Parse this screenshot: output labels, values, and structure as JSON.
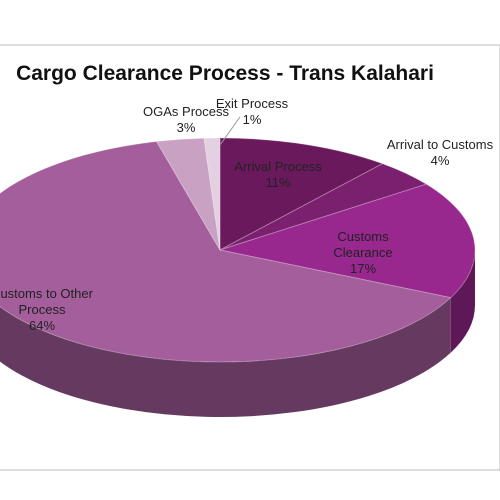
{
  "chart_data": {
    "type": "pie",
    "title": "Cargo Clearance Process - Trans Kalahari",
    "categories": [
      "Arrival Process",
      "Arrival to Customs",
      "Customs Clearance",
      "Customs to Other Process",
      "OGAs Process",
      "Exit Process"
    ],
    "values": [
      11,
      4,
      17,
      64,
      3,
      1
    ],
    "value_labels": [
      "11%",
      "4%",
      "17%",
      "64%",
      "3%",
      "1%"
    ],
    "colors": [
      "#6a1a5c",
      "#7b206e",
      "#98278e",
      "#a45e9b",
      "#c9a1c3",
      "#e3d0e1"
    ]
  }
}
